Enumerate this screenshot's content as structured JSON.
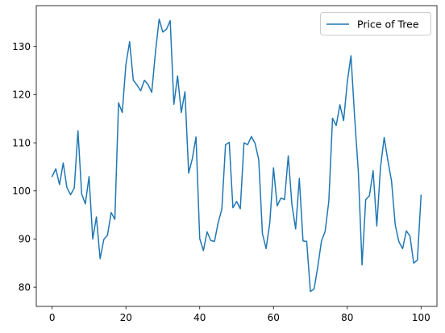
{
  "chart_data": {
    "type": "line",
    "title": "",
    "xlabel": "",
    "ylabel": "",
    "xlim": [
      -4.3,
      104.3
    ],
    "ylim": [
      76.0,
      138.5
    ],
    "xticks": [
      0,
      20,
      40,
      60,
      80,
      100
    ],
    "yticks": [
      80,
      90,
      100,
      110,
      120,
      130
    ],
    "grid": false,
    "legend_position": "top-right",
    "series": [
      {
        "name": "Price of Tree",
        "color": "#1f77b4",
        "x": [
          0,
          1,
          2,
          3,
          4,
          5,
          6,
          7,
          8,
          9,
          10,
          11,
          12,
          13,
          14,
          15,
          16,
          17,
          18,
          19,
          20,
          21,
          22,
          23,
          24,
          25,
          26,
          27,
          28,
          29,
          30,
          31,
          32,
          33,
          34,
          35,
          36,
          37,
          38,
          39,
          40,
          41,
          42,
          43,
          44,
          45,
          46,
          47,
          48,
          49,
          50,
          51,
          52,
          53,
          54,
          55,
          56,
          57,
          58,
          59,
          60,
          61,
          62,
          63,
          64,
          65,
          66,
          67,
          68,
          69,
          70,
          71,
          72,
          73,
          74,
          75,
          76,
          77,
          78,
          79,
          80,
          81,
          82,
          83,
          84,
          85,
          86,
          87,
          88,
          89,
          90,
          91,
          92,
          93,
          94,
          95,
          96,
          97,
          98,
          99,
          100
        ],
        "y": [
          103.0,
          104.6,
          101.3,
          105.8,
          100.7,
          99.2,
          100.6,
          112.5,
          99.4,
          97.3,
          103.0,
          90.0,
          94.6,
          85.9,
          89.9,
          90.8,
          95.5,
          94.1,
          118.3,
          116.3,
          126.3,
          131.0,
          123.0,
          122.0,
          120.8,
          123.0,
          122.1,
          120.5,
          128.8,
          135.7,
          133.0,
          133.6,
          135.4,
          118.0,
          123.9,
          116.3,
          120.6,
          103.7,
          106.7,
          111.2,
          90.1,
          87.6,
          91.5,
          89.7,
          89.5,
          93.4,
          96.2,
          109.6,
          110.1,
          96.5,
          97.8,
          96.3,
          110.0,
          109.6,
          111.3,
          109.9,
          106.5,
          91.1,
          88.0,
          93.4,
          104.8,
          96.9,
          98.5,
          98.2,
          107.3,
          97.1,
          92.1,
          102.6,
          89.6,
          89.5,
          79.1,
          79.6,
          84.2,
          89.6,
          91.6,
          97.9,
          115.1,
          113.6,
          117.9,
          114.6,
          122.6,
          128.1,
          115.2,
          103.9,
          84.6,
          98.2,
          99.0,
          104.2,
          92.7,
          104.9,
          111.1,
          106.3,
          102.0,
          92.9,
          89.4,
          88.0,
          91.7,
          90.6,
          85.0,
          85.6,
          99.1
        ]
      }
    ]
  }
}
